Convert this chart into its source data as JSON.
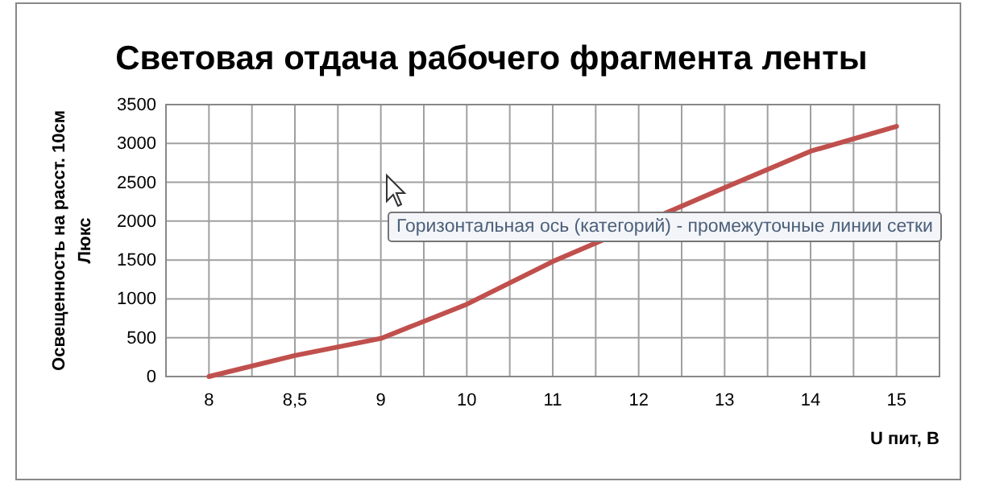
{
  "chart_data": {
    "type": "line",
    "title": "Световая отдача рабочего фрагмента ленты",
    "xlabel": "U пит, В",
    "ylabel": "Освещенность  на  расст.  10см\nЛюкс",
    "categories": [
      "8",
      "8,5",
      "9",
      "10",
      "11",
      "12",
      "13",
      "14",
      "15"
    ],
    "series": [
      {
        "color": "#c0504d",
        "values": [
          0,
          270,
          490,
          930,
          1480,
          null,
          2430,
          2900,
          3220
        ]
      }
    ],
    "ylim": [
      0,
      3500
    ],
    "yticks": [
      0,
      500,
      1000,
      1500,
      2000,
      2500,
      3000,
      3500
    ],
    "grid": true,
    "marker": "none",
    "line_style": "solid",
    "annotations": [
      "Горизонтальная ось (категорий)  - промежуточные линии сетки"
    ]
  }
}
